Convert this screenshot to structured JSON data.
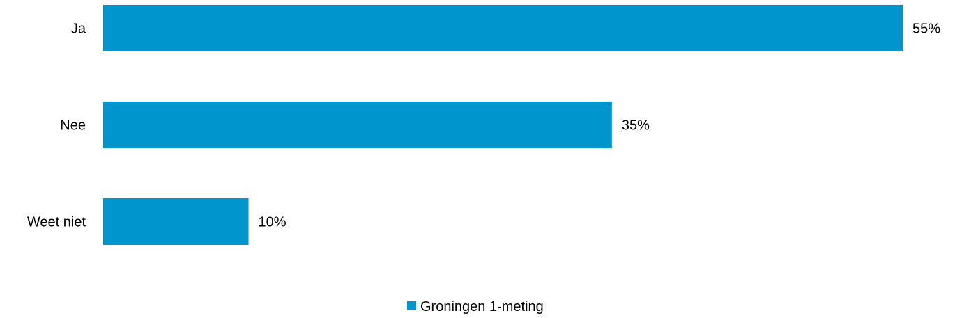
{
  "chart_data": {
    "type": "bar",
    "orientation": "horizontal",
    "categories": [
      "Ja",
      "Nee",
      "Weet niet"
    ],
    "series": [
      {
        "name": "Groningen 1-meting",
        "values": [
          55,
          35,
          10
        ],
        "labels": [
          "55%",
          "35%",
          "10%"
        ],
        "color": "#0096CD"
      }
    ],
    "title": "",
    "xlabel": "",
    "ylabel": "",
    "xlim": [
      0,
      55
    ],
    "grid": false,
    "axis_visible": false,
    "legend_position": "bottom"
  }
}
